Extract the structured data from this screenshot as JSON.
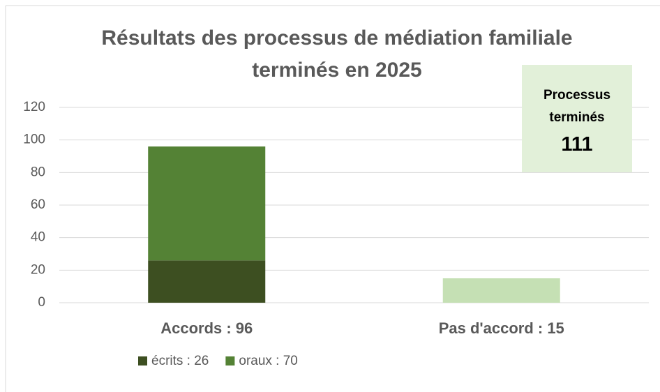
{
  "chart_data": {
    "type": "stacked-bar",
    "title": "Résultats des processus de médiation familiale terminés en 2025",
    "categories": [
      "Accords : 96",
      "Pas d'accord : 15"
    ],
    "series": [
      {
        "name": "écrits : 26",
        "color": "#3d4f21",
        "values": [
          26,
          null
        ]
      },
      {
        "name": "oraux : 70",
        "color": "#548235",
        "values": [
          70,
          null
        ]
      },
      {
        "color": "#c5e0b4",
        "values": [
          null,
          15
        ]
      }
    ],
    "ylim": [
      0,
      120
    ],
    "yticks": [
      0,
      20,
      40,
      60,
      80,
      100,
      120
    ],
    "grid": true,
    "annotation": {
      "label": "Processus terminés",
      "value": 111,
      "color": "#e2f0d9"
    }
  }
}
